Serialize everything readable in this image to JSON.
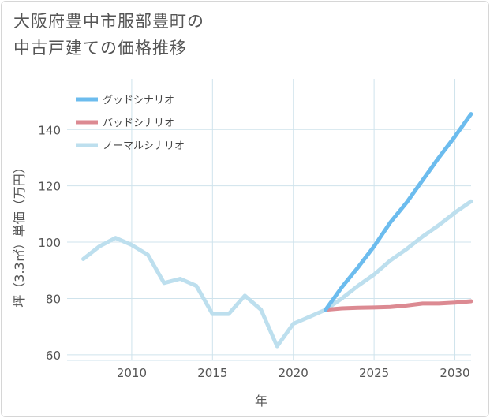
{
  "title_line1": "大阪府豊中市服部豊町の",
  "title_line2": "中古戸建ての価格推移",
  "chart_data": {
    "type": "line",
    "xlabel": "年",
    "ylabel": "坪（3.3㎡）単価（万円）",
    "xlim": [
      2006,
      2031
    ],
    "ylim": [
      58,
      158
    ],
    "xticks": [
      2010,
      2015,
      2020,
      2025,
      2030
    ],
    "yticks": [
      60,
      80,
      100,
      120,
      140
    ],
    "grid": true,
    "legend_position": "top-left",
    "series": [
      {
        "name": "グッドシナリオ",
        "color": "#6cbcee",
        "x": [
          2022,
          2023,
          2024,
          2025,
          2026,
          2027,
          2028,
          2029,
          2030,
          2031
        ],
        "y": [
          76,
          84,
          91,
          98.5,
          107,
          114,
          122,
          130,
          137.5,
          145.5
        ]
      },
      {
        "name": "バッドシナリオ",
        "color": "#dc8a92",
        "x": [
          2022,
          2023,
          2024,
          2025,
          2026,
          2027,
          2028,
          2029,
          2030,
          2031
        ],
        "y": [
          76,
          76.5,
          76.7,
          76.8,
          77,
          77.5,
          78.2,
          78.2,
          78.5,
          79
        ]
      },
      {
        "name": "ノーマルシナリオ",
        "color": "#bddfee",
        "x": [
          2007,
          2008,
          2009,
          2010,
          2011,
          2012,
          2013,
          2014,
          2015,
          2016,
          2017,
          2018,
          2019,
          2020,
          2021,
          2022,
          2023,
          2024,
          2025,
          2026,
          2027,
          2028,
          2029,
          2030,
          2031
        ],
        "y": [
          94,
          98.5,
          101.5,
          99,
          95.5,
          85.5,
          87,
          84.5,
          74.5,
          74.5,
          81,
          76,
          63,
          71,
          73.5,
          76,
          80,
          84.5,
          88.5,
          93.5,
          97.5,
          102,
          106,
          110.5,
          114.5
        ]
      }
    ]
  }
}
